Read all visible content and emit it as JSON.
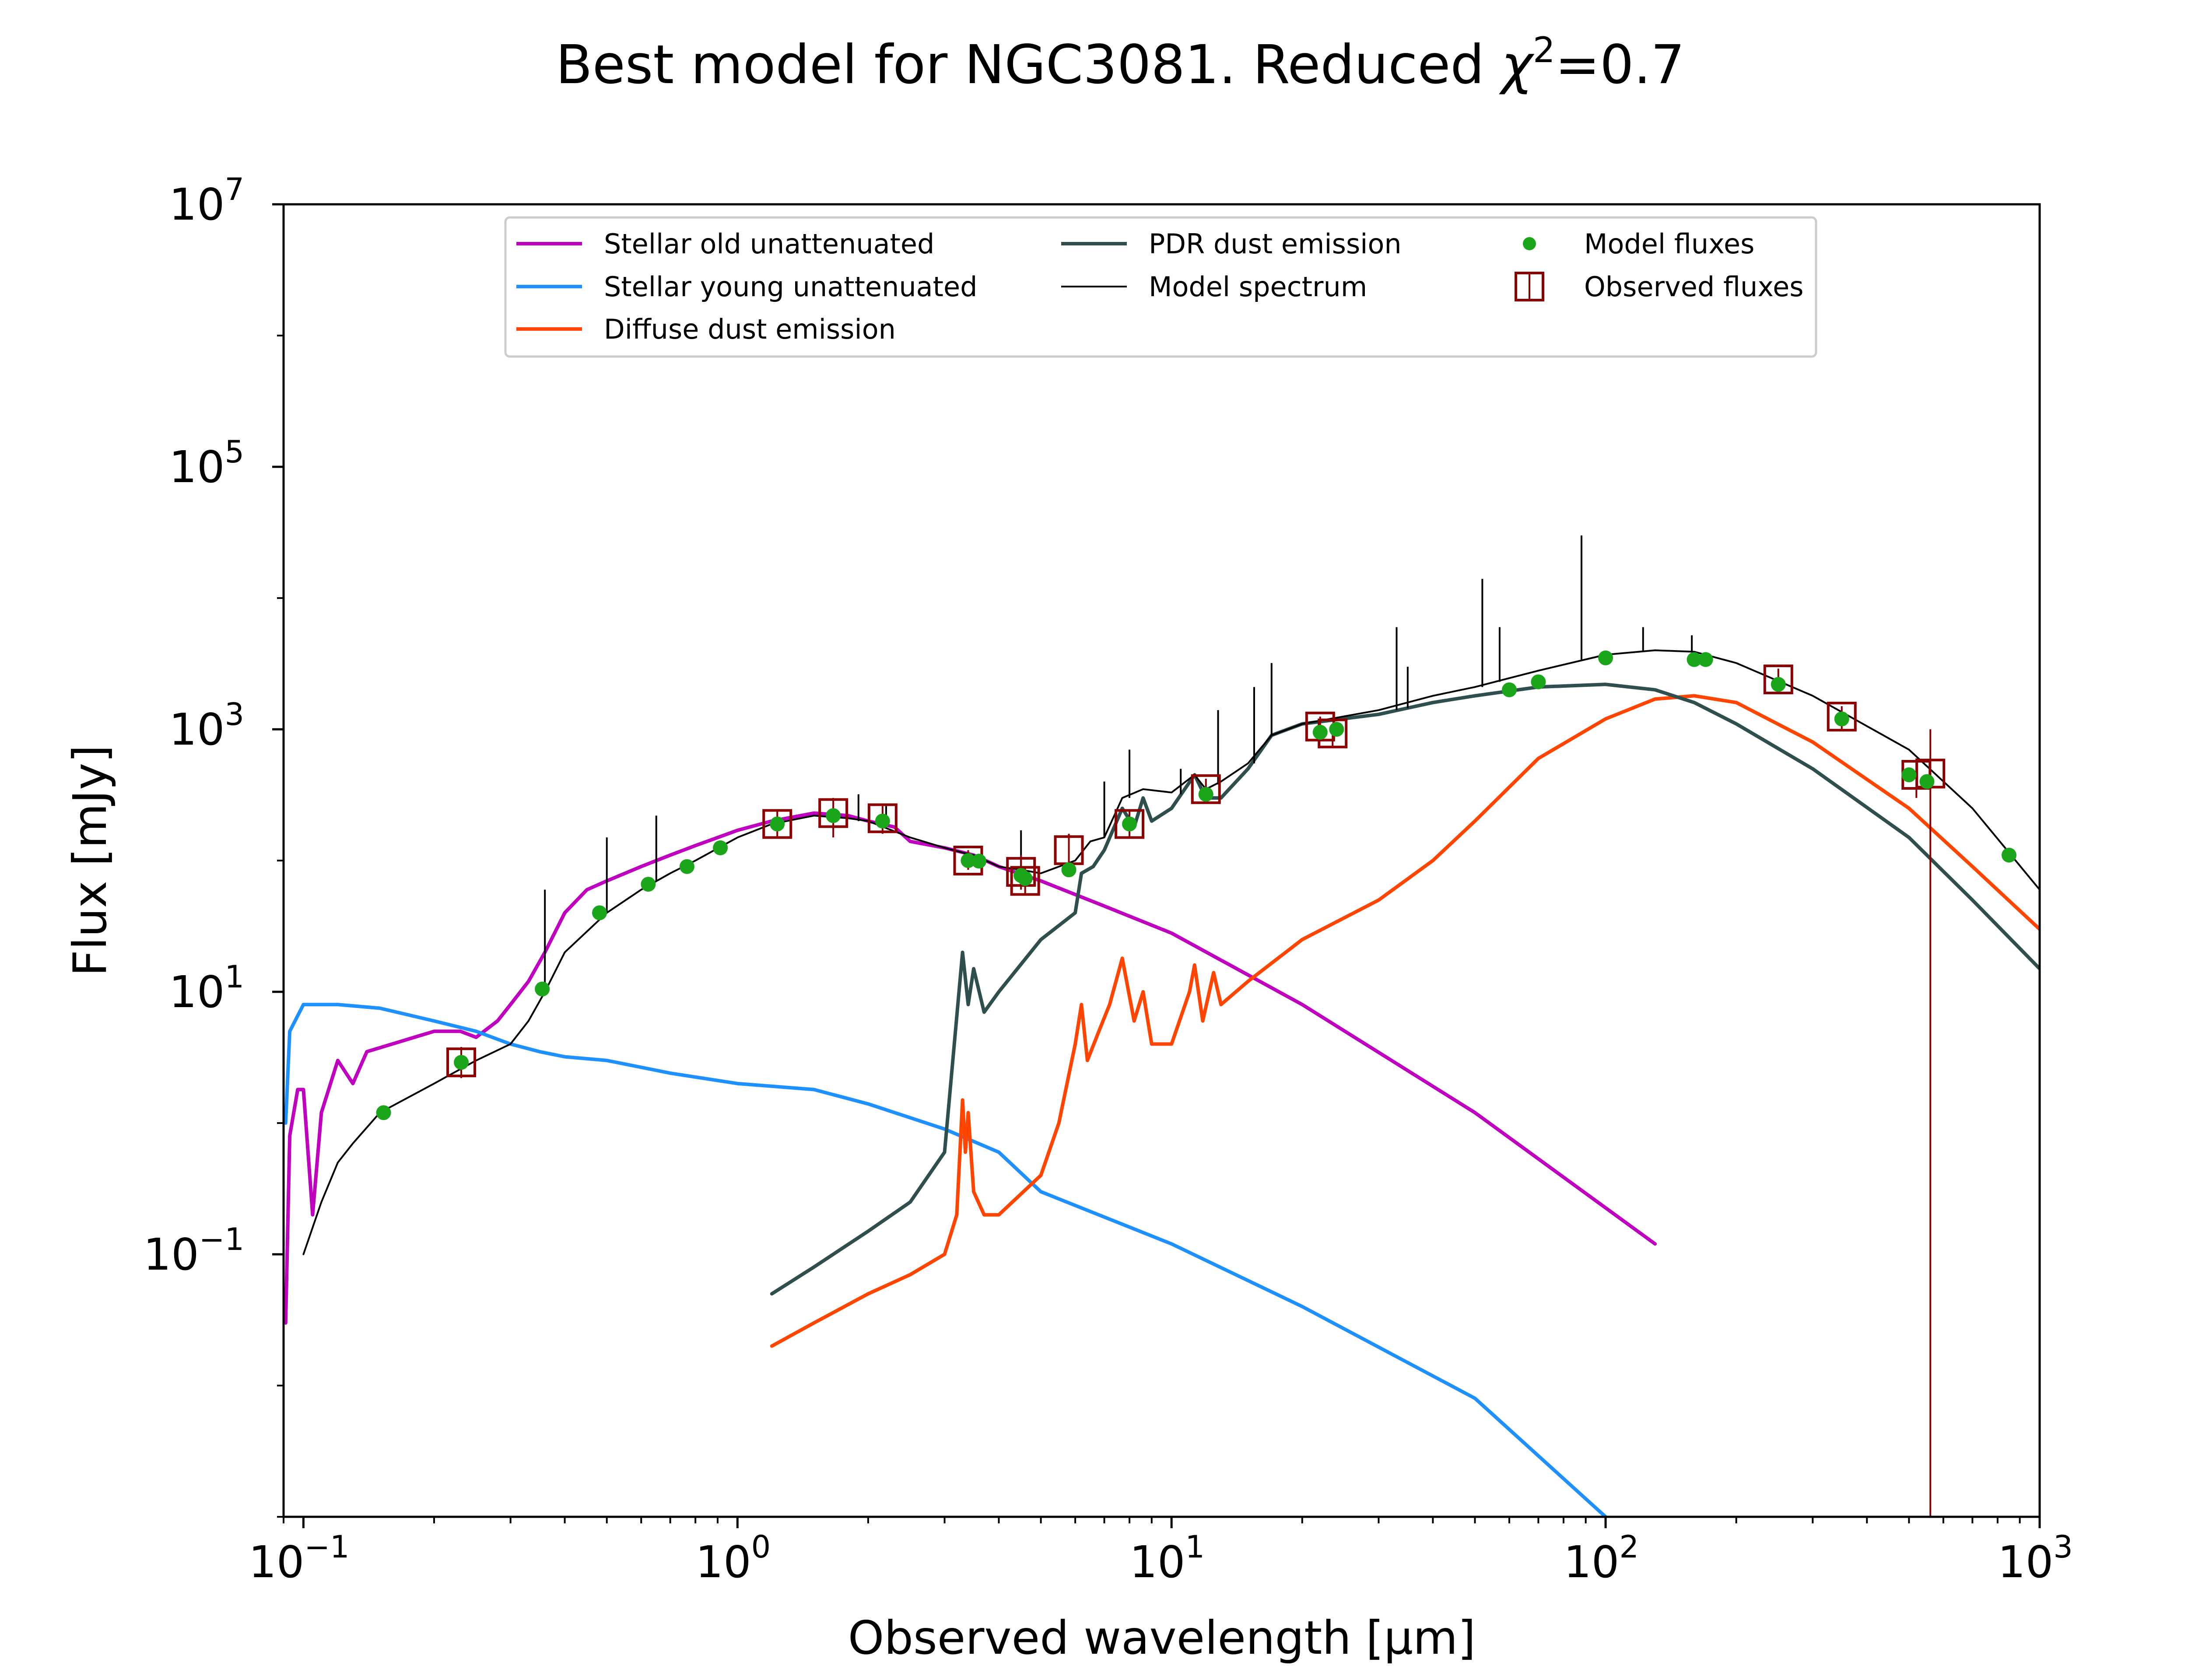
{
  "chart_data": {
    "type": "line",
    "title": {
      "prefix": "Best model for NGC3081. Reduced ",
      "chi": "χ",
      "sup": "2",
      "suffix": "=0.7"
    },
    "xlabel": "Observed wavelength [μm]",
    "ylabel": "Flux [mJy]",
    "xscale": "log",
    "yscale": "log",
    "xlim": [
      0.09,
      1000
    ],
    "ylim": [
      0.001,
      10000000
    ],
    "x_ticks": [
      {
        "value": 0.1,
        "base": "10",
        "exp": "−1"
      },
      {
        "value": 1,
        "base": "10",
        "exp": "0"
      },
      {
        "value": 10,
        "base": "10",
        "exp": "1"
      },
      {
        "value": 100,
        "base": "10",
        "exp": "2"
      },
      {
        "value": 1000,
        "base": "10",
        "exp": "3"
      }
    ],
    "y_ticks": [
      {
        "value": 0.1,
        "base": "10",
        "exp": "−1"
      },
      {
        "value": 10,
        "base": "10",
        "exp": "1"
      },
      {
        "value": 1000,
        "base": "10",
        "exp": "3"
      },
      {
        "value": 100000,
        "base": "10",
        "exp": "5"
      },
      {
        "value": 10000000,
        "base": "10",
        "exp": "7"
      }
    ],
    "grid": false,
    "legend_position": "top-center",
    "legend": [
      {
        "label": "Stellar old unattenuated",
        "color": "#bf00bf",
        "kind": "line"
      },
      {
        "label": "Stellar young unattenuated",
        "color": "#1e90ff",
        "kind": "line"
      },
      {
        "label": "Diffuse dust emission",
        "color": "#ff4500",
        "kind": "line"
      },
      {
        "label": "PDR dust emission",
        "color": "#2f4f4f",
        "kind": "line"
      },
      {
        "label": "Model spectrum",
        "color": "#000000",
        "kind": "thin-line"
      },
      {
        "label": "Model fluxes",
        "color": "#1aa51a",
        "kind": "dot"
      },
      {
        "label": "Observed fluxes",
        "color": "#8b0000",
        "kind": "square"
      }
    ],
    "series": [
      {
        "name": "Stellar old unattenuated",
        "color": "#bf00bf",
        "points": [
          [
            0.091,
            0.03
          ],
          [
            0.093,
            0.8
          ],
          [
            0.097,
            1.8
          ],
          [
            0.1,
            1.8
          ],
          [
            0.105,
            0.2
          ],
          [
            0.11,
            1.2
          ],
          [
            0.12,
            3.0
          ],
          [
            0.13,
            2.0
          ],
          [
            0.14,
            3.5
          ],
          [
            0.16,
            4.0
          ],
          [
            0.18,
            4.5
          ],
          [
            0.2,
            5.0
          ],
          [
            0.23,
            5.0
          ],
          [
            0.25,
            4.5
          ],
          [
            0.28,
            6.0
          ],
          [
            0.3,
            8.0
          ],
          [
            0.33,
            12
          ],
          [
            0.36,
            20
          ],
          [
            0.4,
            40
          ],
          [
            0.45,
            60
          ],
          [
            0.5,
            70
          ],
          [
            0.6,
            90
          ],
          [
            0.7,
            110
          ],
          [
            0.8,
            130
          ],
          [
            1.0,
            170
          ],
          [
            1.2,
            200
          ],
          [
            1.5,
            230
          ],
          [
            1.8,
            220
          ],
          [
            2.0,
            200
          ],
          [
            2.3,
            180
          ],
          [
            2.5,
            140
          ],
          [
            3.0,
            125
          ],
          [
            3.5,
            110
          ],
          [
            4.0,
            90
          ],
          [
            5.0,
            70
          ],
          [
            7.0,
            45
          ],
          [
            10,
            28
          ],
          [
            20,
            8
          ],
          [
            50,
            1.2
          ],
          [
            130,
            0.12
          ]
        ]
      },
      {
        "name": "Stellar young unattenuated",
        "color": "#1e90ff",
        "points": [
          [
            0.091,
            1.0
          ],
          [
            0.093,
            5.0
          ],
          [
            0.1,
            8.0
          ],
          [
            0.12,
            8.0
          ],
          [
            0.15,
            7.5
          ],
          [
            0.2,
            6.0
          ],
          [
            0.25,
            5.0
          ],
          [
            0.3,
            4.0
          ],
          [
            0.35,
            3.5
          ],
          [
            0.4,
            3.2
          ],
          [
            0.5,
            3.0
          ],
          [
            0.7,
            2.4
          ],
          [
            1.0,
            2.0
          ],
          [
            1.5,
            1.8
          ],
          [
            2.0,
            1.4
          ],
          [
            3.0,
            0.9
          ],
          [
            4.0,
            0.6
          ],
          [
            5.0,
            0.3
          ],
          [
            10,
            0.12
          ],
          [
            20,
            0.04
          ],
          [
            50,
            0.008
          ],
          [
            100,
            0.001
          ]
        ]
      },
      {
        "name": "Diffuse dust emission",
        "color": "#ff4500",
        "points": [
          [
            1.2,
            0.02
          ],
          [
            1.5,
            0.03
          ],
          [
            2.0,
            0.05
          ],
          [
            2.5,
            0.07
          ],
          [
            3.0,
            0.1
          ],
          [
            3.2,
            0.2
          ],
          [
            3.3,
            1.5
          ],
          [
            3.35,
            0.6
          ],
          [
            3.4,
            1.2
          ],
          [
            3.5,
            0.3
          ],
          [
            3.7,
            0.2
          ],
          [
            4.0,
            0.2
          ],
          [
            5.0,
            0.4
          ],
          [
            5.5,
            1.0
          ],
          [
            6.0,
            4.0
          ],
          [
            6.2,
            8.0
          ],
          [
            6.4,
            3.0
          ],
          [
            6.8,
            5.0
          ],
          [
            7.2,
            8.0
          ],
          [
            7.7,
            18
          ],
          [
            8.2,
            6.0
          ],
          [
            8.6,
            10
          ],
          [
            9.0,
            4.0
          ],
          [
            10,
            4.0
          ],
          [
            11.0,
            10
          ],
          [
            11.3,
            16
          ],
          [
            11.8,
            6.0
          ],
          [
            12.5,
            14
          ],
          [
            13,
            8
          ],
          [
            15,
            12
          ],
          [
            20,
            25
          ],
          [
            30,
            50
          ],
          [
            40,
            100
          ],
          [
            50,
            200
          ],
          [
            70,
            600
          ],
          [
            100,
            1200
          ],
          [
            130,
            1700
          ],
          [
            160,
            1800
          ],
          [
            200,
            1600
          ],
          [
            300,
            800
          ],
          [
            500,
            250
          ],
          [
            700,
            90
          ],
          [
            1000,
            30
          ]
        ]
      },
      {
        "name": "PDR dust emission",
        "color": "#2f4f4f",
        "points": [
          [
            1.2,
            0.05
          ],
          [
            1.5,
            0.08
          ],
          [
            2.0,
            0.15
          ],
          [
            2.5,
            0.25
          ],
          [
            3.0,
            0.6
          ],
          [
            3.3,
            20
          ],
          [
            3.4,
            8
          ],
          [
            3.5,
            15
          ],
          [
            3.7,
            7
          ],
          [
            4.0,
            10
          ],
          [
            5.0,
            25
          ],
          [
            6.0,
            40
          ],
          [
            6.2,
            80
          ],
          [
            6.6,
            90
          ],
          [
            7.0,
            120
          ],
          [
            7.7,
            250
          ],
          [
            8.2,
            180
          ],
          [
            8.6,
            300
          ],
          [
            9.0,
            200
          ],
          [
            10,
            250
          ],
          [
            11.3,
            450
          ],
          [
            12,
            300
          ],
          [
            13,
            300
          ],
          [
            15,
            500
          ],
          [
            17,
            900
          ],
          [
            20,
            1100
          ],
          [
            30,
            1300
          ],
          [
            40,
            1600
          ],
          [
            50,
            1800
          ],
          [
            70,
            2100
          ],
          [
            100,
            2200
          ],
          [
            130,
            2000
          ],
          [
            160,
            1600
          ],
          [
            200,
            1100
          ],
          [
            300,
            500
          ],
          [
            500,
            150
          ],
          [
            700,
            50
          ],
          [
            1000,
            15
          ]
        ]
      },
      {
        "name": "Model spectrum",
        "color": "#000000",
        "points": [
          [
            0.1,
            0.1
          ],
          [
            0.11,
            0.25
          ],
          [
            0.12,
            0.5
          ],
          [
            0.13,
            0.7
          ],
          [
            0.15,
            1.2
          ],
          [
            0.2,
            2.0
          ],
          [
            0.25,
            3.0
          ],
          [
            0.3,
            4.0
          ],
          [
            0.33,
            6.0
          ],
          [
            0.36,
            10
          ],
          [
            0.4,
            20
          ],
          [
            0.5,
            40
          ],
          [
            0.6,
            60
          ],
          [
            0.7,
            80
          ],
          [
            0.8,
            100
          ],
          [
            1.0,
            150
          ],
          [
            1.2,
            190
          ],
          [
            1.5,
            220
          ],
          [
            1.8,
            210
          ],
          [
            2.0,
            200
          ],
          [
            2.5,
            150
          ],
          [
            3.0,
            125
          ],
          [
            3.3,
            115
          ],
          [
            3.5,
            110
          ],
          [
            4.0,
            90
          ],
          [
            4.5,
            85
          ],
          [
            5.0,
            80
          ],
          [
            6.0,
            100
          ],
          [
            6.5,
            140
          ],
          [
            7.0,
            150
          ],
          [
            7.7,
            300
          ],
          [
            8.6,
            350
          ],
          [
            10,
            330
          ],
          [
            11.3,
            450
          ],
          [
            12,
            350
          ],
          [
            13,
            400
          ],
          [
            15,
            550
          ],
          [
            17,
            900
          ],
          [
            20,
            1100
          ],
          [
            30,
            1400
          ],
          [
            40,
            1800
          ],
          [
            50,
            2100
          ],
          [
            70,
            2800
          ],
          [
            100,
            3700
          ],
          [
            130,
            4000
          ],
          [
            160,
            3900
          ],
          [
            200,
            3200
          ],
          [
            300,
            1800
          ],
          [
            500,
            700
          ],
          [
            700,
            250
          ],
          [
            1000,
            60
          ]
        ]
      }
    ],
    "emission_lines": [
      {
        "x": 0.36,
        "y_base": 10,
        "y_top": 60
      },
      {
        "x": 0.5,
        "y_base": 40,
        "y_top": 150
      },
      {
        "x": 0.65,
        "y_base": 70,
        "y_top": 220
      },
      {
        "x": 1.9,
        "y_base": 200,
        "y_top": 320
      },
      {
        "x": 2.2,
        "y_base": 190,
        "y_top": 260
      },
      {
        "x": 4.5,
        "y_base": 85,
        "y_top": 170
      },
      {
        "x": 7.0,
        "y_base": 150,
        "y_top": 400
      },
      {
        "x": 8.0,
        "y_base": 300,
        "y_top": 700
      },
      {
        "x": 10.5,
        "y_base": 320,
        "y_top": 500
      },
      {
        "x": 12.8,
        "y_base": 380,
        "y_top": 1400
      },
      {
        "x": 15.5,
        "y_base": 550,
        "y_top": 2100
      },
      {
        "x": 17.0,
        "y_base": 900,
        "y_top": 3200
      },
      {
        "x": 33,
        "y_base": 1400,
        "y_top": 6000
      },
      {
        "x": 35,
        "y_base": 1450,
        "y_top": 3000
      },
      {
        "x": 52,
        "y_base": 2100,
        "y_top": 14000
      },
      {
        "x": 57,
        "y_base": 2300,
        "y_top": 6000
      },
      {
        "x": 88,
        "y_base": 3400,
        "y_top": 30000
      },
      {
        "x": 122,
        "y_base": 3900,
        "y_top": 6000
      },
      {
        "x": 158,
        "y_base": 3900,
        "y_top": 5200
      }
    ],
    "model_fluxes": [
      [
        0.153,
        1.2
      ],
      [
        0.231,
        2.9
      ],
      [
        0.355,
        10.5
      ],
      [
        0.481,
        40
      ],
      [
        0.623,
        66
      ],
      [
        0.765,
        90
      ],
      [
        0.913,
        125
      ],
      [
        1.235,
        190
      ],
      [
        1.662,
        220
      ],
      [
        2.159,
        200
      ],
      [
        3.4,
        100
      ],
      [
        3.6,
        99
      ],
      [
        4.5,
        77
      ],
      [
        4.6,
        73
      ],
      [
        5.8,
        85
      ],
      [
        8.0,
        190
      ],
      [
        12,
        320
      ],
      [
        22,
        950
      ],
      [
        24,
        1000
      ],
      [
        60,
        2000
      ],
      [
        70,
        2300
      ],
      [
        100,
        3500
      ],
      [
        160,
        3400
      ],
      [
        170,
        3400
      ],
      [
        250,
        2200
      ],
      [
        350,
        1200
      ],
      [
        500,
        450
      ],
      [
        550,
        400
      ],
      [
        850,
        110
      ]
    ],
    "observed_fluxes": [
      {
        "x": 0.231,
        "y": 2.9,
        "err": [
          2.2,
          3.8
        ]
      },
      {
        "x": 1.235,
        "y": 190,
        "err": [
          150,
          240
        ]
      },
      {
        "x": 1.662,
        "y": 230,
        "err": [
          150,
          300
        ]
      },
      {
        "x": 2.159,
        "y": 210,
        "err": [
          160,
          260
        ]
      },
      {
        "x": 3.4,
        "y": 100,
        "err": [
          85,
          120
        ]
      },
      {
        "x": 4.5,
        "y": 82,
        "err": [
          60,
          110
        ]
      },
      {
        "x": 4.6,
        "y": 70,
        "err": [
          55,
          90
        ]
      },
      {
        "x": 5.8,
        "y": 120,
        "err": [
          80,
          160
        ]
      },
      {
        "x": 8.0,
        "y": 190,
        "err": [
          150,
          240
        ]
      },
      {
        "x": 12,
        "y": 350,
        "err": [
          290,
          420
        ]
      },
      {
        "x": 22,
        "y": 1050,
        "err": [
          850,
          1250
        ]
      },
      {
        "x": 23.5,
        "y": 930,
        "err": [
          750,
          1100
        ]
      },
      {
        "x": 250,
        "y": 2400,
        "err": [
          2000,
          2900
        ]
      },
      {
        "x": 350,
        "y": 1250,
        "err": [
          1000,
          1500
        ]
      },
      {
        "x": 520,
        "y": 450,
        "err": [
          300,
          600
        ]
      },
      {
        "x": 560,
        "y": 460,
        "err": [
          0.001,
          1000
        ]
      }
    ]
  }
}
